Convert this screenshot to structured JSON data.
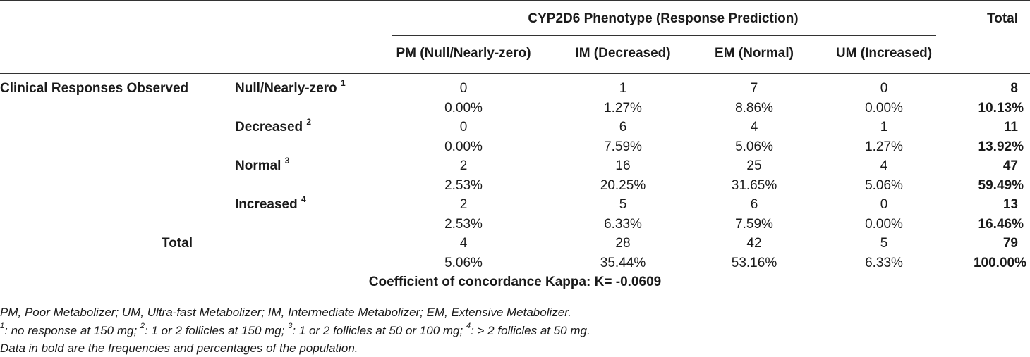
{
  "table": {
    "group_header": "CYP2D6 Phenotype (Response Prediction)",
    "total_header": "Total",
    "columns": [
      "PM (Null/Nearly-zero)",
      "IM (Decreased)",
      "EM (Normal)",
      "UM (Increased)"
    ],
    "row_group_label": "Clinical Responses Observed",
    "rows": [
      {
        "label": "Null/Nearly-zero",
        "sup": "1",
        "counts": [
          "0",
          "1",
          "7",
          "0"
        ],
        "count_total": "8",
        "pcts": [
          "0.00%",
          "1.27%",
          "8.86%",
          "0.00%"
        ],
        "pct_total": "10.13%"
      },
      {
        "label": "Decreased",
        "sup": "2",
        "counts": [
          "0",
          "6",
          "4",
          "1"
        ],
        "count_total": "11",
        "pcts": [
          "0.00%",
          "7.59%",
          "5.06%",
          "1.27%"
        ],
        "pct_total": "13.92%"
      },
      {
        "label": "Normal",
        "sup": "3",
        "counts": [
          "2",
          "16",
          "25",
          "4"
        ],
        "count_total": "47",
        "pcts": [
          "2.53%",
          "20.25%",
          "31.65%",
          "5.06%"
        ],
        "pct_total": "59.49%"
      },
      {
        "label": "Increased",
        "sup": "4",
        "counts": [
          "2",
          "5",
          "6",
          "0"
        ],
        "count_total": "13",
        "pcts": [
          "2.53%",
          "6.33%",
          "7.59%",
          "0.00%"
        ],
        "pct_total": "16.46%"
      }
    ],
    "total_row": {
      "label": "Total",
      "counts": [
        "4",
        "28",
        "42",
        "5"
      ],
      "count_total": "79",
      "pcts": [
        "5.06%",
        "35.44%",
        "53.16%",
        "6.33%"
      ],
      "pct_total": "100.00%"
    },
    "kappa": "Coefficient of concordance Kappa: K= -0.0609"
  },
  "footnotes": {
    "abbrev": "PM, Poor Metabolizer; UM, Ultra-fast Metabolizer; IM, Intermediate Metabolizer; EM, Extensive Metabolizer.",
    "defs": [
      {
        "sup": "1",
        "text": ": no response at 150 mg; "
      },
      {
        "sup": "2",
        "text": ": 1 or 2 follicles at 150 mg; "
      },
      {
        "sup": "3",
        "text": ": 1 or 2 follicles at 50 or 100 mg; "
      },
      {
        "sup": "4",
        "text": ": > 2 follicles at 50 mg."
      }
    ],
    "bold_note": "Data in bold are the frequencies and percentages of the population."
  }
}
